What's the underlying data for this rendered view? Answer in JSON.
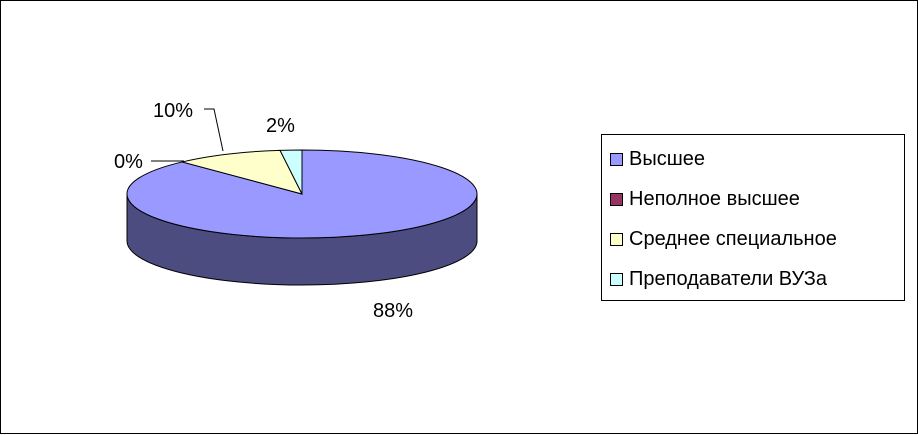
{
  "chart_data": {
    "type": "pie",
    "three_d": true,
    "title": "",
    "categories": [
      "Высшее",
      "Неполное высшее",
      "Среднее специальное",
      "Преподаватели ВУЗа"
    ],
    "values": [
      88,
      0,
      10,
      2
    ],
    "data_labels": [
      "88%",
      "0%",
      "10%",
      "2%"
    ],
    "colors": [
      "#9999ff",
      "#993366",
      "#ffffcc",
      "#ccffff"
    ],
    "side_colors": [
      "#4c4c80",
      "#4c1933",
      "#808066",
      "#668080"
    ],
    "legend": "right"
  }
}
